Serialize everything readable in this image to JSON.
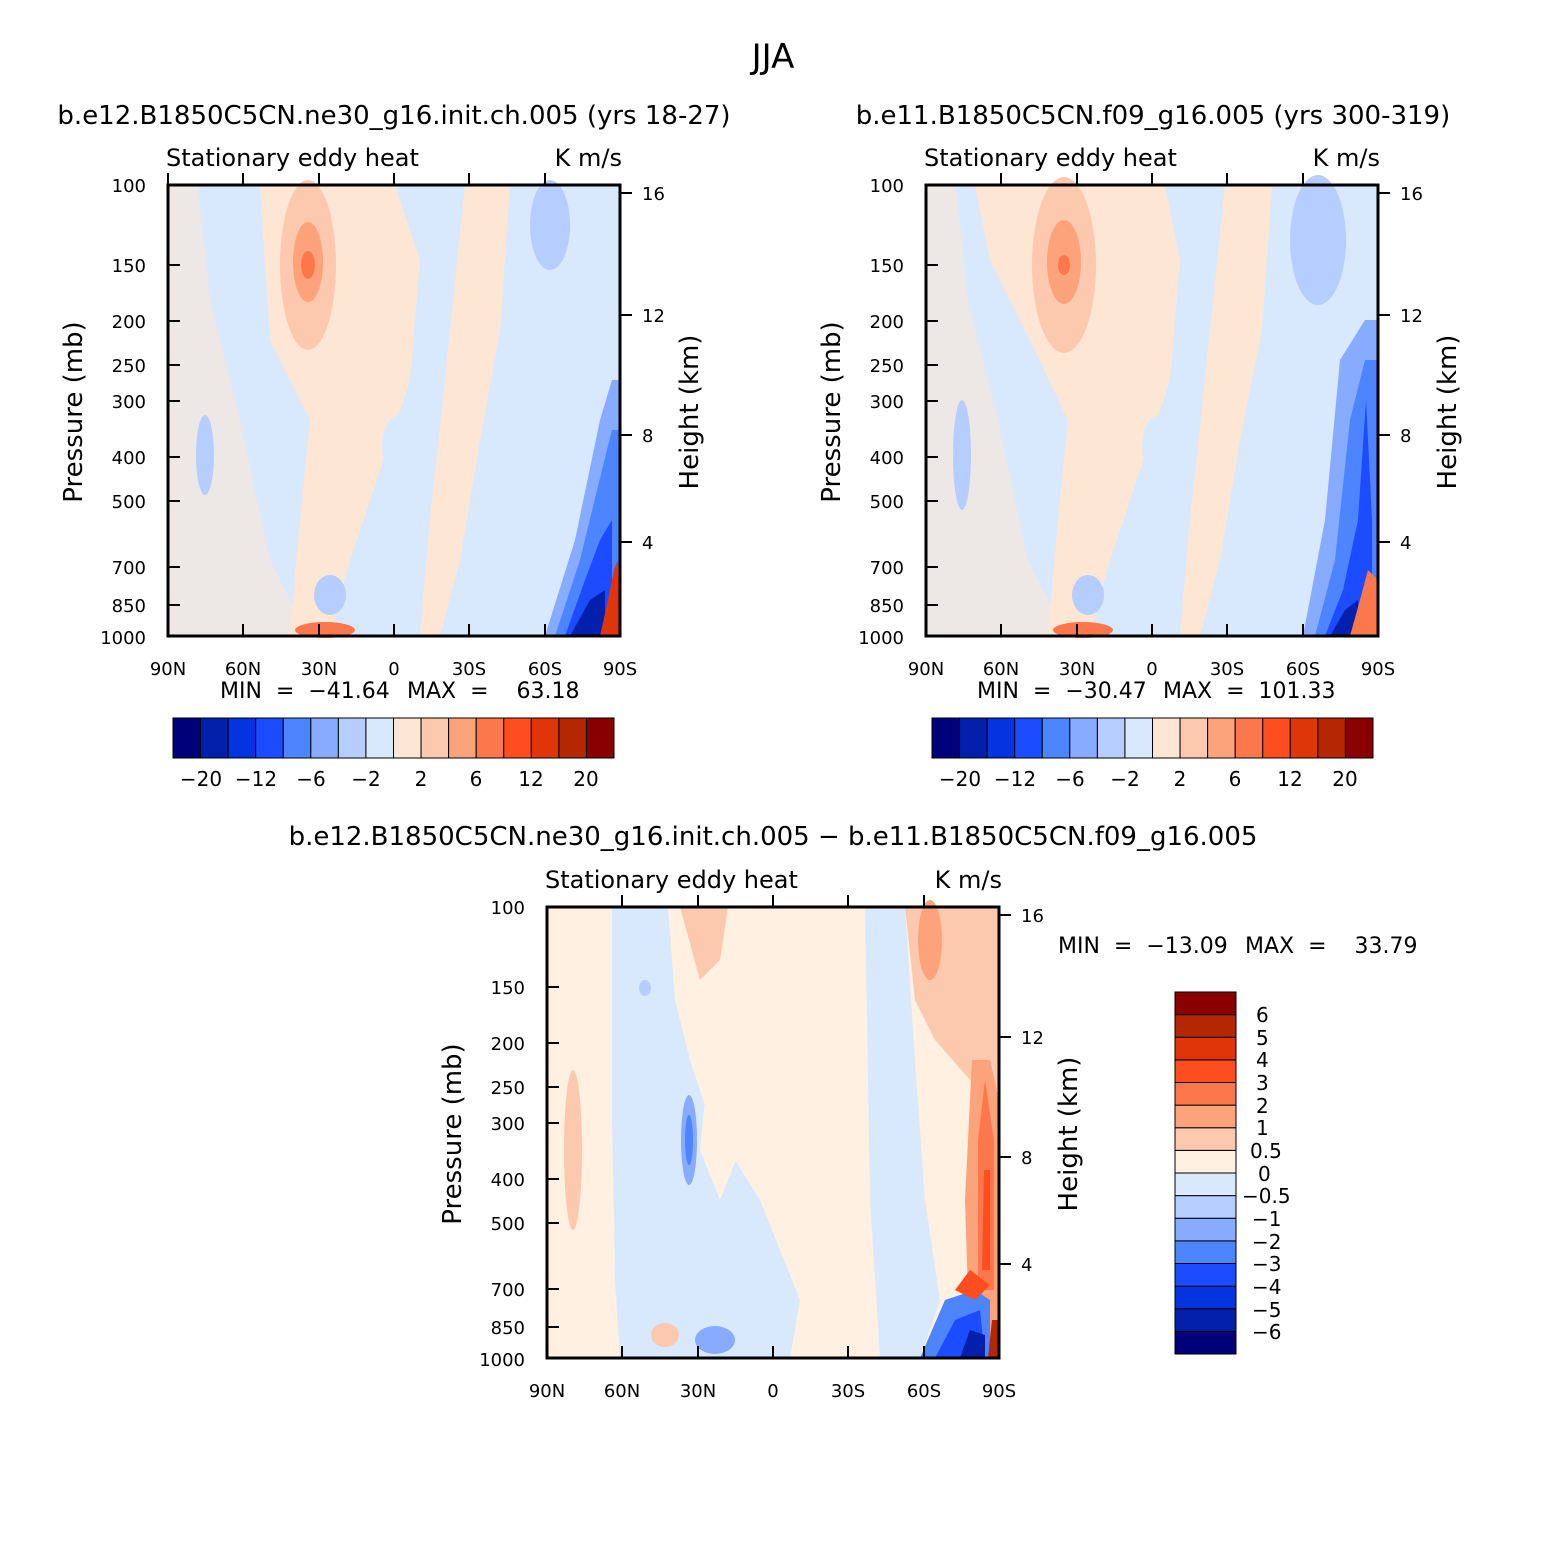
{
  "figure_title": "JJA",
  "colors": {
    "full": [
      "#00007a",
      "#0320ad",
      "#0433e0",
      "#1c4cff",
      "#4d84ff",
      "#86abff",
      "#b6cdff",
      "#d9e9fd",
      "#fde7d4",
      "#fcc9ae",
      "#fca37c",
      "#fc784c",
      "#fe4e20",
      "#e03509",
      "#b52603",
      "#8a0000"
    ],
    "diff": [
      "#00007a",
      "#0320ad",
      "#0433e0",
      "#1c4cff",
      "#4d84ff",
      "#86abff",
      "#b6cdff",
      "#d9e9fd",
      "#fff0e2",
      "#fcc9ae",
      "#fca37c",
      "#fc784c",
      "#fe4e20",
      "#e03509",
      "#b52603",
      "#8a0000"
    ]
  },
  "chart_data": [
    {
      "type": "heatmap",
      "title": "b.e12.B1850C5CN.ne30_g16.init.ch.005 (yrs 18-27)",
      "left_label": "Stationary  eddy  heat",
      "right_label": "K  m/s",
      "ylabel": "Pressure  (mb)",
      "y2label": "Height  (km)",
      "xticks": [
        "90N",
        "60N",
        "30N",
        "0",
        "30S",
        "60S",
        "90S"
      ],
      "yticks": [
        "100",
        "150",
        "200",
        "250",
        "300",
        "400",
        "500",
        "700",
        "850",
        "1000"
      ],
      "y2ticks": [
        "16",
        "12",
        "8",
        "4"
      ],
      "min_label": "MIN  =  −41.64",
      "max_label": "MAX  =    63.18",
      "colorbar_labels": [
        "−20",
        "−12",
        "−6",
        "−2",
        "2",
        "6",
        "12",
        "20"
      ],
      "features": [
        {
          "lat": 45,
          "p": 150,
          "value": 6
        },
        {
          "lat": 75,
          "p": 400,
          "value": -3
        },
        {
          "lat": -80,
          "p": 900,
          "value": -20
        },
        {
          "lat": -88,
          "p": 980,
          "value": 20
        },
        {
          "lat": 32,
          "p": 990,
          "value": 6
        }
      ]
    },
    {
      "type": "heatmap",
      "title": "b.e11.B1850C5CN.f09_g16.005 (yrs 300-319)",
      "left_label": "Stationary  eddy  heat",
      "right_label": "K  m/s",
      "ylabel": "Pressure  (mb)",
      "y2label": "Height  (km)",
      "xticks": [
        "90N",
        "60N",
        "30N",
        "0",
        "30S",
        "60S",
        "90S"
      ],
      "yticks": [
        "100",
        "150",
        "200",
        "250",
        "300",
        "400",
        "500",
        "700",
        "850",
        "1000"
      ],
      "y2ticks": [
        "16",
        "12",
        "8",
        "4"
      ],
      "min_label": "MIN  =  −30.47",
      "max_label": "MAX  =  101.33",
      "colorbar_labels": [
        "−20",
        "−12",
        "−6",
        "−2",
        "2",
        "6",
        "12",
        "20"
      ],
      "features": [
        {
          "lat": 45,
          "p": 150,
          "value": 6
        },
        {
          "lat": -82,
          "p": 400,
          "value": -6
        },
        {
          "lat": -80,
          "p": 900,
          "value": -12
        },
        {
          "lat": -88,
          "p": 980,
          "value": 20
        },
        {
          "lat": 32,
          "p": 990,
          "value": 6
        }
      ]
    },
    {
      "type": "heatmap",
      "title": "b.e12.B1850C5CN.ne30_g16.init.ch.005 − b.e11.B1850C5CN.f09_g16.005",
      "left_label": "Stationary  eddy  heat",
      "right_label": "K  m/s",
      "ylabel": "Pressure  (mb)",
      "y2label": "Height  (km)",
      "xticks": [
        "90N",
        "60N",
        "30N",
        "0",
        "30S",
        "60S",
        "90S"
      ],
      "yticks": [
        "100",
        "150",
        "200",
        "250",
        "300",
        "400",
        "500",
        "700",
        "850",
        "1000"
      ],
      "y2ticks": [
        "16",
        "12",
        "8",
        "4"
      ],
      "min_label": "MIN  =  −13.09",
      "max_label": "MAX  =    33.79",
      "colorbar_labels": [
        "6",
        "5",
        "4",
        "3",
        "2",
        "1",
        "0.5",
        "0",
        "−0.5",
        "−1",
        "−2",
        "−3",
        "−4",
        "−5",
        "−6"
      ],
      "features": [
        {
          "lat": -85,
          "p": 450,
          "value": 3
        },
        {
          "lat": -80,
          "p": 900,
          "value": -5
        },
        {
          "lat": 35,
          "p": 350,
          "value": -2
        },
        {
          "lat": 80,
          "p": 400,
          "value": 1
        }
      ]
    }
  ]
}
